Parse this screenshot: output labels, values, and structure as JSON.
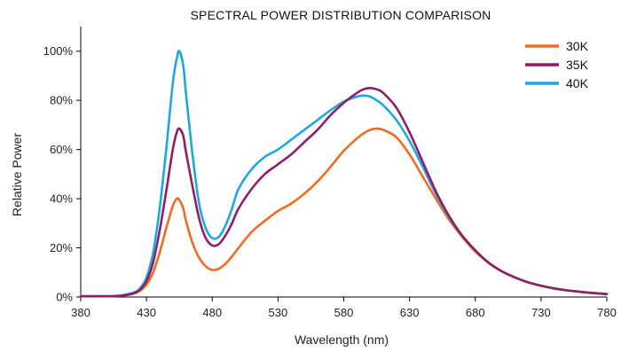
{
  "chart_data": {
    "type": "line",
    "title": "SPECTRAL POWER DISTRIBUTION COMPARISON",
    "xlabel": "Wavelength (nm)",
    "ylabel": "Relative Power",
    "xlim": [
      380,
      780
    ],
    "ylim": [
      0,
      1.1
    ],
    "x_ticks": [
      380,
      430,
      480,
      530,
      580,
      630,
      680,
      730,
      780
    ],
    "y_ticks": [
      0,
      0.2,
      0.4,
      0.6,
      0.8,
      1.0
    ],
    "y_tick_labels": [
      "0%",
      "20%",
      "40%",
      "60%",
      "80%",
      "100%"
    ],
    "grid": false,
    "legend_position": "top-right",
    "x": [
      380,
      400,
      410,
      420,
      425,
      430,
      435,
      440,
      445,
      450,
      453,
      455,
      458,
      460,
      465,
      470,
      475,
      480,
      485,
      490,
      495,
      500,
      510,
      520,
      530,
      540,
      550,
      560,
      570,
      580,
      590,
      595,
      600,
      605,
      610,
      620,
      630,
      640,
      650,
      660,
      670,
      680,
      690,
      700,
      710,
      720,
      730,
      740,
      750,
      760,
      770,
      780
    ],
    "series": [
      {
        "name": "30K",
        "color": "#f26b21",
        "values": [
          0.003,
          0.003,
          0.005,
          0.013,
          0.025,
          0.05,
          0.1,
          0.18,
          0.28,
          0.37,
          0.4,
          0.395,
          0.36,
          0.31,
          0.22,
          0.16,
          0.125,
          0.11,
          0.115,
          0.135,
          0.165,
          0.2,
          0.265,
          0.31,
          0.35,
          0.38,
          0.42,
          0.47,
          0.53,
          0.595,
          0.645,
          0.665,
          0.68,
          0.685,
          0.68,
          0.65,
          0.58,
          0.49,
          0.4,
          0.315,
          0.245,
          0.185,
          0.14,
          0.105,
          0.08,
          0.06,
          0.046,
          0.035,
          0.027,
          0.021,
          0.016,
          0.012
        ]
      },
      {
        "name": "35K",
        "color": "#8e1f67",
        "values": [
          0.003,
          0.003,
          0.005,
          0.015,
          0.03,
          0.065,
          0.14,
          0.27,
          0.43,
          0.6,
          0.67,
          0.685,
          0.655,
          0.59,
          0.45,
          0.32,
          0.24,
          0.21,
          0.215,
          0.25,
          0.3,
          0.36,
          0.44,
          0.5,
          0.54,
          0.58,
          0.63,
          0.68,
          0.74,
          0.79,
          0.83,
          0.845,
          0.85,
          0.845,
          0.83,
          0.77,
          0.67,
          0.55,
          0.43,
          0.33,
          0.25,
          0.19,
          0.14,
          0.105,
          0.08,
          0.06,
          0.046,
          0.035,
          0.027,
          0.021,
          0.016,
          0.012
        ]
      },
      {
        "name": "40K",
        "color": "#1ea7e1",
        "values": [
          0.003,
          0.003,
          0.006,
          0.018,
          0.035,
          0.08,
          0.18,
          0.36,
          0.6,
          0.87,
          0.97,
          1.0,
          0.94,
          0.83,
          0.58,
          0.38,
          0.28,
          0.24,
          0.245,
          0.29,
          0.36,
          0.44,
          0.52,
          0.57,
          0.6,
          0.64,
          0.68,
          0.72,
          0.76,
          0.795,
          0.815,
          0.82,
          0.815,
          0.8,
          0.78,
          0.72,
          0.635,
          0.53,
          0.42,
          0.325,
          0.25,
          0.19,
          0.14,
          0.105,
          0.08,
          0.06,
          0.046,
          0.035,
          0.027,
          0.021,
          0.016,
          0.012
        ]
      }
    ]
  }
}
